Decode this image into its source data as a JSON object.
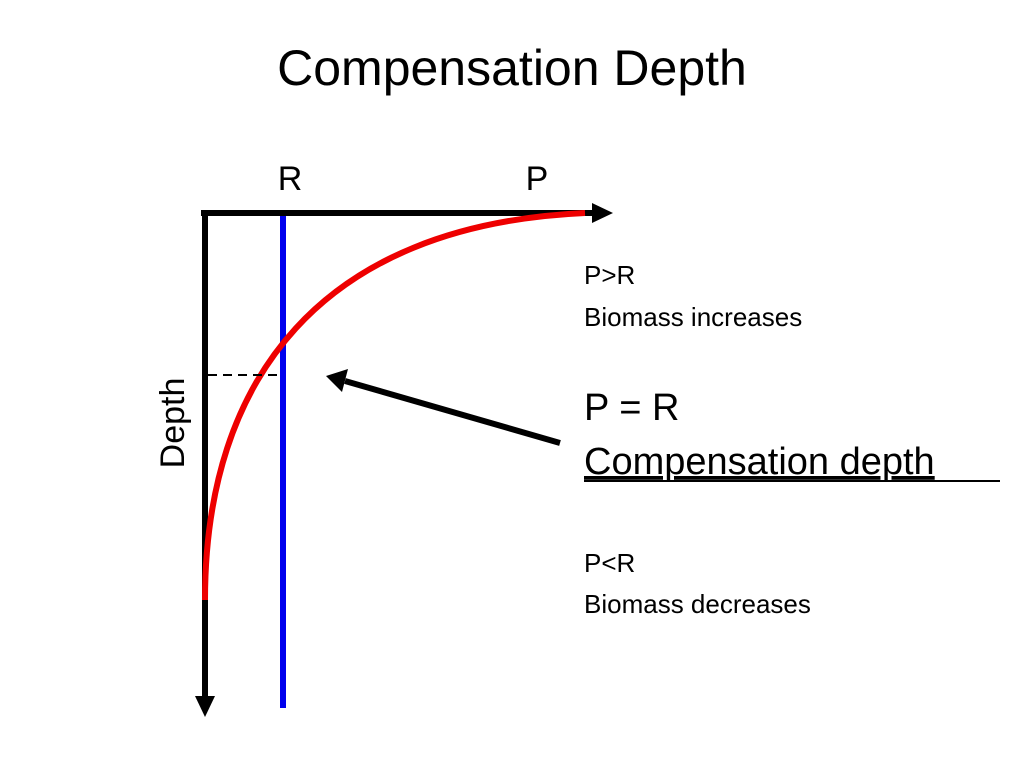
{
  "title": "Compensation Depth",
  "axis_labels": {
    "top_left": "R",
    "top_right": "P",
    "vertical": "Depth"
  },
  "annotations": {
    "upper": {
      "line1": "P>R",
      "line2": "Biomass increases"
    },
    "middle": {
      "line1": "P = R",
      "line2": "Compensation depth"
    },
    "lower": {
      "line1": "P<R",
      "line2": "Biomass decreases"
    }
  }
}
